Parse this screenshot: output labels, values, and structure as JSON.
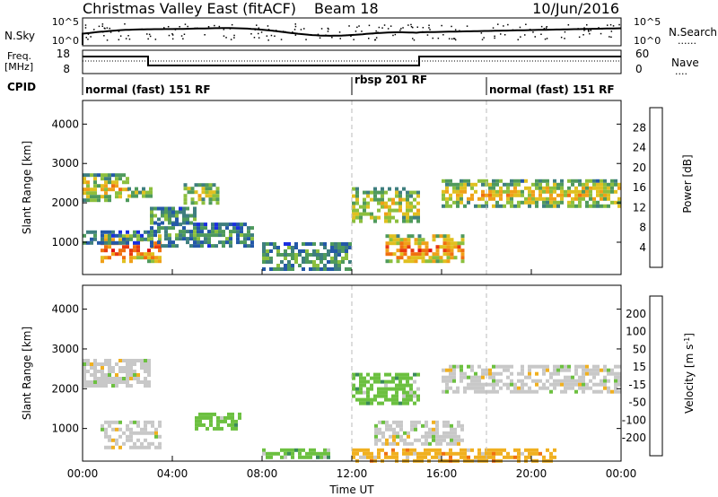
{
  "header": {
    "title": "Christmas Valley East (fitACF)",
    "beam": "Beam 18",
    "date": "10/Jun/2016"
  },
  "top_panels": {
    "nsky": {
      "label": "N.Sky",
      "ticks": [
        "10^5",
        "10^0"
      ],
      "right_ticks": [
        "10^5",
        "10^0"
      ],
      "right_label": "N.Search",
      "dotted_key": "......"
    },
    "freq": {
      "label_line1": "Freq.",
      "label_line2": "[MHz]",
      "left_ticks": [
        "18",
        "8"
      ],
      "right_ticks": [
        "60",
        "0"
      ],
      "right_label": "Nave",
      "dotted_key": "...."
    },
    "cpid": {
      "label": "CPID",
      "modes": [
        {
          "name": "normal (fast) 151 RF",
          "start_hour": 0
        },
        {
          "name": "rbsp 201 RF",
          "start_hour": 12
        },
        {
          "name": "normal (fast) 151 RF",
          "start_hour": 18
        }
      ]
    }
  },
  "chart_data": [
    {
      "type": "heatmap",
      "name": "power",
      "ylabel": "Slant Range [km]",
      "yticks": [
        1000,
        2000,
        3000,
        4000
      ],
      "ylim": [
        180,
        4600
      ],
      "xlim": [
        0,
        24
      ],
      "colorbar": {
        "label": "Power [dB]",
        "ticks": [
          "4",
          "8",
          "12",
          "16",
          "20",
          "24",
          "28"
        ],
        "colors": [
          "#1a2fe0",
          "#2458a8",
          "#3f7f7f",
          "#4f9a5c",
          "#8cbf3e",
          "#e0c020",
          "#f0a018",
          "#f07010",
          "#e83a10",
          "#e01010"
        ]
      },
      "echo_bands": [
        {
          "t0": 0.0,
          "t1": 2.0,
          "r0": 2100,
          "r1": 2750,
          "level": 0.6
        },
        {
          "t0": 2.0,
          "t1": 3.0,
          "r0": 2150,
          "r1": 2400,
          "level": 0.5
        },
        {
          "t0": 0.8,
          "t1": 3.5,
          "r0": 500,
          "r1": 1200,
          "level": 0.85
        },
        {
          "t0": 3.0,
          "t1": 5.0,
          "r0": 1500,
          "r1": 1900,
          "level": 0.4
        },
        {
          "t0": 4.5,
          "t1": 6.0,
          "r0": 2000,
          "r1": 2500,
          "level": 0.5
        },
        {
          "t0": 0.0,
          "t1": 3.0,
          "r0": 1000,
          "r1": 1300,
          "level": 0.25
        },
        {
          "t0": 3.0,
          "t1": 7.5,
          "r0": 900,
          "r1": 1500,
          "level": 0.3
        },
        {
          "t0": 8.0,
          "t1": 12.0,
          "r0": 300,
          "r1": 1000,
          "level": 0.35
        },
        {
          "t0": 12.0,
          "t1": 15.0,
          "r0": 1500,
          "r1": 2400,
          "level": 0.55
        },
        {
          "t0": 13.5,
          "t1": 17.0,
          "r0": 500,
          "r1": 1200,
          "level": 0.8
        },
        {
          "t0": 16.0,
          "t1": 24.0,
          "r0": 1900,
          "r1": 2600,
          "level": 0.6
        }
      ]
    },
    {
      "type": "heatmap",
      "name": "velocity",
      "ylabel": "Slant Range [km]",
      "xlabel": "Time UT",
      "xticks": [
        "00:00",
        "04:00",
        "08:00",
        "12:00",
        "16:00",
        "20:00",
        "00:00"
      ],
      "yticks": [
        1000,
        2000,
        3000,
        4000
      ],
      "ylim": [
        180,
        4600
      ],
      "xlim": [
        0,
        24
      ],
      "colorbar": {
        "label": "Velocity [m s^-1]",
        "ticks": [
          "200",
          "100",
          "50",
          "15",
          "-15",
          "-50",
          "-100",
          "-200"
        ],
        "colors": [
          "#2030c0",
          "#2a6a9a",
          "#3a8a5a",
          "#6cc040",
          "#c8c8c8",
          "#f0b020",
          "#f07010",
          "#e02010"
        ]
      },
      "echo_bands": [
        {
          "t0": 0.0,
          "t1": 3.0,
          "r0": 2100,
          "r1": 2750,
          "color_index": 4
        },
        {
          "t0": 0.8,
          "t1": 3.5,
          "r0": 500,
          "r1": 1200,
          "color_index": 4
        },
        {
          "t0": 5.0,
          "t1": 7.0,
          "r0": 1000,
          "r1": 1400,
          "color_index": 3
        },
        {
          "t0": 8.0,
          "t1": 11.0,
          "r0": 300,
          "r1": 500,
          "color_index": 3
        },
        {
          "t0": 12.0,
          "t1": 15.0,
          "r0": 1600,
          "r1": 2400,
          "color_index": 3
        },
        {
          "t0": 13.0,
          "t1": 17.0,
          "r0": 600,
          "r1": 1200,
          "color_index": 4
        },
        {
          "t0": 16.0,
          "t1": 24.0,
          "r0": 1900,
          "r1": 2600,
          "color_index": 4
        },
        {
          "t0": 12.0,
          "t1": 21.0,
          "r0": 180,
          "r1": 500,
          "color_index": 5
        }
      ]
    }
  ]
}
